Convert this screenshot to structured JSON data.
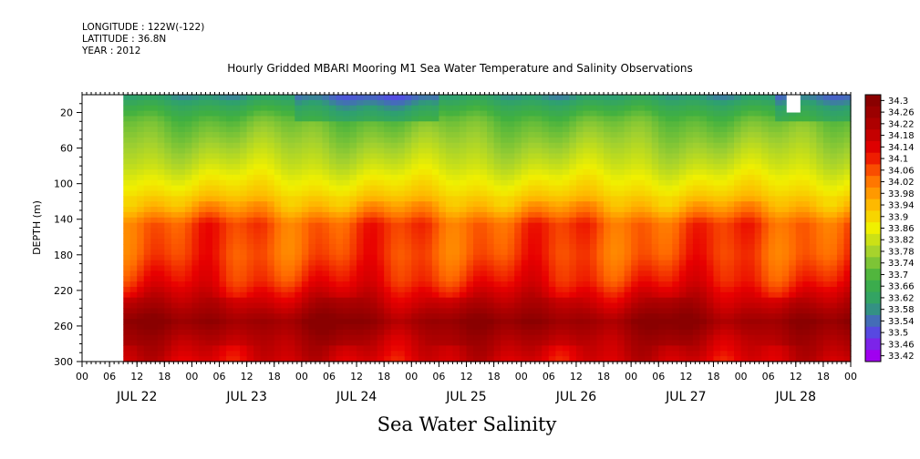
{
  "header": {
    "longitude": "LONGITUDE : 122W(-122)",
    "latitude": "LATITUDE : 36.8N",
    "year": "YEAR : 2012"
  },
  "chart_data": {
    "type": "heatmap",
    "title": "Hourly Gridded MBARI Mooring M1 Sea Water Temperature and Salinity Observations",
    "variable_title": "Sea Water Salinity",
    "xlabel": "",
    "ylabel": "DEPTH (m)",
    "x_hours_range": [
      0,
      168
    ],
    "data_start_hour": 9,
    "y_range": [
      0,
      300
    ],
    "y_inverted": true,
    "y_ticks": [
      20,
      60,
      100,
      140,
      180,
      220,
      260,
      300
    ],
    "x_hour_ticks": [
      "00",
      "06",
      "12",
      "18"
    ],
    "x_day_labels": [
      "JUL 22",
      "JUL 23",
      "JUL 24",
      "JUL 25",
      "JUL 26",
      "JUL 27",
      "JUL 28"
    ],
    "colorbar": {
      "levels": [
        34.3,
        34.26,
        34.22,
        34.18,
        34.14,
        34.1,
        34.06,
        34.02,
        33.98,
        33.94,
        33.9,
        33.86,
        33.82,
        33.78,
        33.74,
        33.7,
        33.66,
        33.62,
        33.58,
        33.54,
        33.5,
        33.46,
        33.42
      ],
      "min": 33.42,
      "max": 34.3,
      "colors": [
        "#a000f0",
        "#5050e0",
        "#2ea070",
        "#40b040",
        "#a0d030",
        "#f0f000",
        "#ffb400",
        "#ff6a00",
        "#e80000",
        "#b00000",
        "#8a0000"
      ]
    },
    "depth_profile": {
      "depths_m": [
        0,
        15,
        30,
        50,
        80,
        110,
        130,
        145,
        180,
        210,
        235,
        255,
        275,
        300
      ],
      "salinity": [
        33.58,
        33.66,
        33.72,
        33.76,
        33.82,
        33.9,
        33.98,
        34.06,
        34.06,
        34.1,
        34.18,
        34.26,
        34.2,
        34.15
      ]
    },
    "missing_blocks": [
      {
        "hour_start": 0,
        "hour_end": 9,
        "depth_start": 0,
        "depth_end": 300
      },
      {
        "hour_start": 154,
        "hour_end": 157,
        "depth_start": 0,
        "depth_end": 20
      }
    ]
  }
}
